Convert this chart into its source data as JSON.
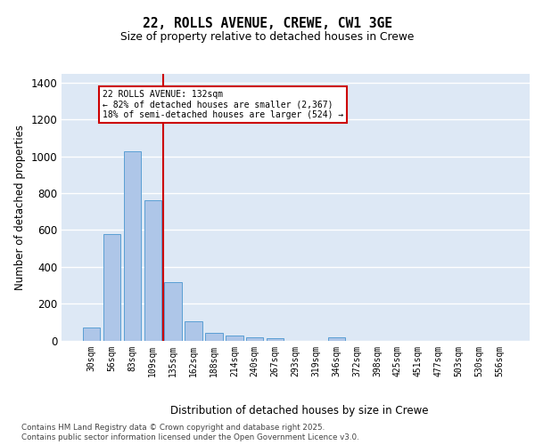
{
  "title_line1": "22, ROLLS AVENUE, CREWE, CW1 3GE",
  "title_line2": "Size of property relative to detached houses in Crewe",
  "xlabel": "Distribution of detached houses by size in Crewe",
  "ylabel": "Number of detached properties",
  "categories": [
    "30sqm",
    "56sqm",
    "83sqm",
    "109sqm",
    "135sqm",
    "162sqm",
    "188sqm",
    "214sqm",
    "240sqm",
    "267sqm",
    "293sqm",
    "319sqm",
    "346sqm",
    "372sqm",
    "398sqm",
    "425sqm",
    "451sqm",
    "477sqm",
    "503sqm",
    "530sqm",
    "556sqm"
  ],
  "values": [
    70,
    580,
    1025,
    760,
    315,
    105,
    42,
    28,
    17,
    10,
    0,
    0,
    18,
    0,
    0,
    0,
    0,
    0,
    0,
    0,
    0
  ],
  "bar_color": "#aec6e8",
  "bar_edge_color": "#5a9fd4",
  "vline_color": "#cc0000",
  "vline_pos": 3.5,
  "annotation_line1": "22 ROLLS AVENUE: 132sqm",
  "annotation_line2": "← 82% of detached houses are smaller (2,367)",
  "annotation_line3": "18% of semi-detached houses are larger (524) →",
  "annotation_box_color": "#cc0000",
  "ylim": [
    0,
    1450
  ],
  "yticks": [
    0,
    200,
    400,
    600,
    800,
    1000,
    1200,
    1400
  ],
  "background_color": "#dde8f5",
  "grid_color": "#ffffff",
  "footer_line1": "Contains HM Land Registry data © Crown copyright and database right 2025.",
  "footer_line2": "Contains public sector information licensed under the Open Government Licence v3.0."
}
